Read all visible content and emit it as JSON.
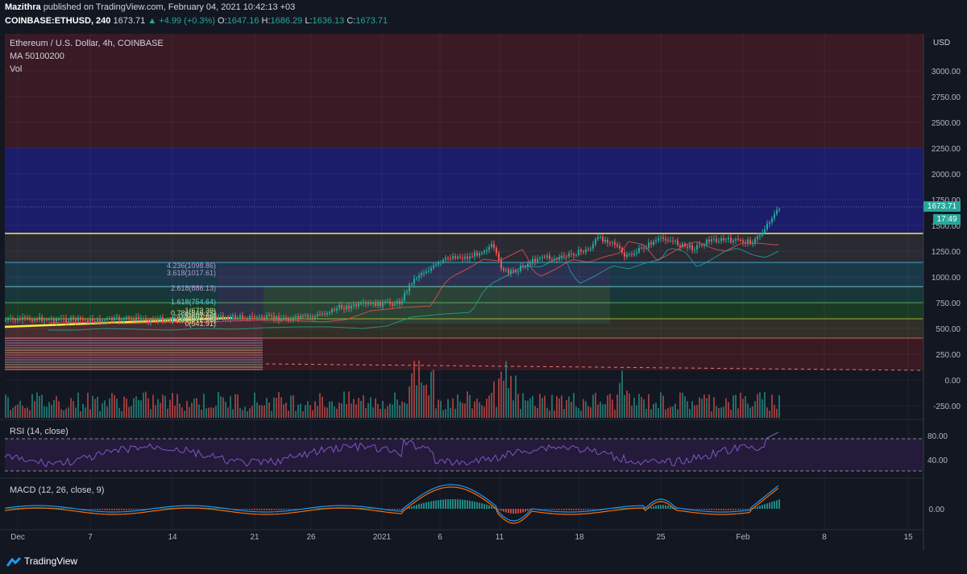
{
  "header": {
    "author": "Mazithra",
    "published": "published on TradingView.com, February 04, 2021 10:42:13 +03",
    "symbol": "COINBASE:ETHUSD, 240",
    "last": "1673.71",
    "change": "+4.99 (+0.3%)",
    "o_label": "O:",
    "o": "1647.16",
    "h_label": "H:",
    "h": "1686.29",
    "l_label": "L:",
    "l": "1636.13",
    "c_label": "C:",
    "c": "1673.71"
  },
  "legend": {
    "title": "Ethereum / U.S. Dollar, 4h, COINBASE",
    "ma": "MA 50100200",
    "vol": "Vol",
    "rsi": "RSI (14, close)",
    "macd": "MACD (12, 26, close, 9)"
  },
  "price_axis": {
    "currency": "USD",
    "ticks": [
      "3000.00",
      "2750.00",
      "2500.00",
      "2250.00",
      "2000.00",
      "1750.00",
      "1500.00",
      "1250.00",
      "1000.00",
      "750.00",
      "500.00",
      "250.00",
      "0.00",
      "-250.00"
    ],
    "last_price": "1673.71",
    "countdown": "17:49"
  },
  "rsi_axis": {
    "ticks": [
      "80.00",
      "40.00"
    ]
  },
  "macd_axis": {
    "ticks": [
      "0.00"
    ]
  },
  "time_axis": {
    "ticks": [
      "Dec",
      "7",
      "14",
      "21",
      "26",
      "2021",
      "6",
      "11",
      "18",
      "25",
      "Feb",
      "8",
      "15"
    ]
  },
  "fib_labels": [
    "4.236(1098.86)",
    "3.618(1017.61)",
    "2.618(886.13)",
    "1.618(754.64)",
    "1(673.39)",
    "0.786(645.25)",
    "0.5(607.66)",
    "0.236(572.96)",
    "0(541.91)"
  ],
  "colors": {
    "bg": "#131722",
    "up": "#26a69a",
    "down": "#ef5350",
    "yellow": "#ffeb3b",
    "rsi": "#7e57c2",
    "macd": "#2196f3",
    "signal": "#ff6d00"
  },
  "footer": {
    "brand": "TradingView"
  }
}
